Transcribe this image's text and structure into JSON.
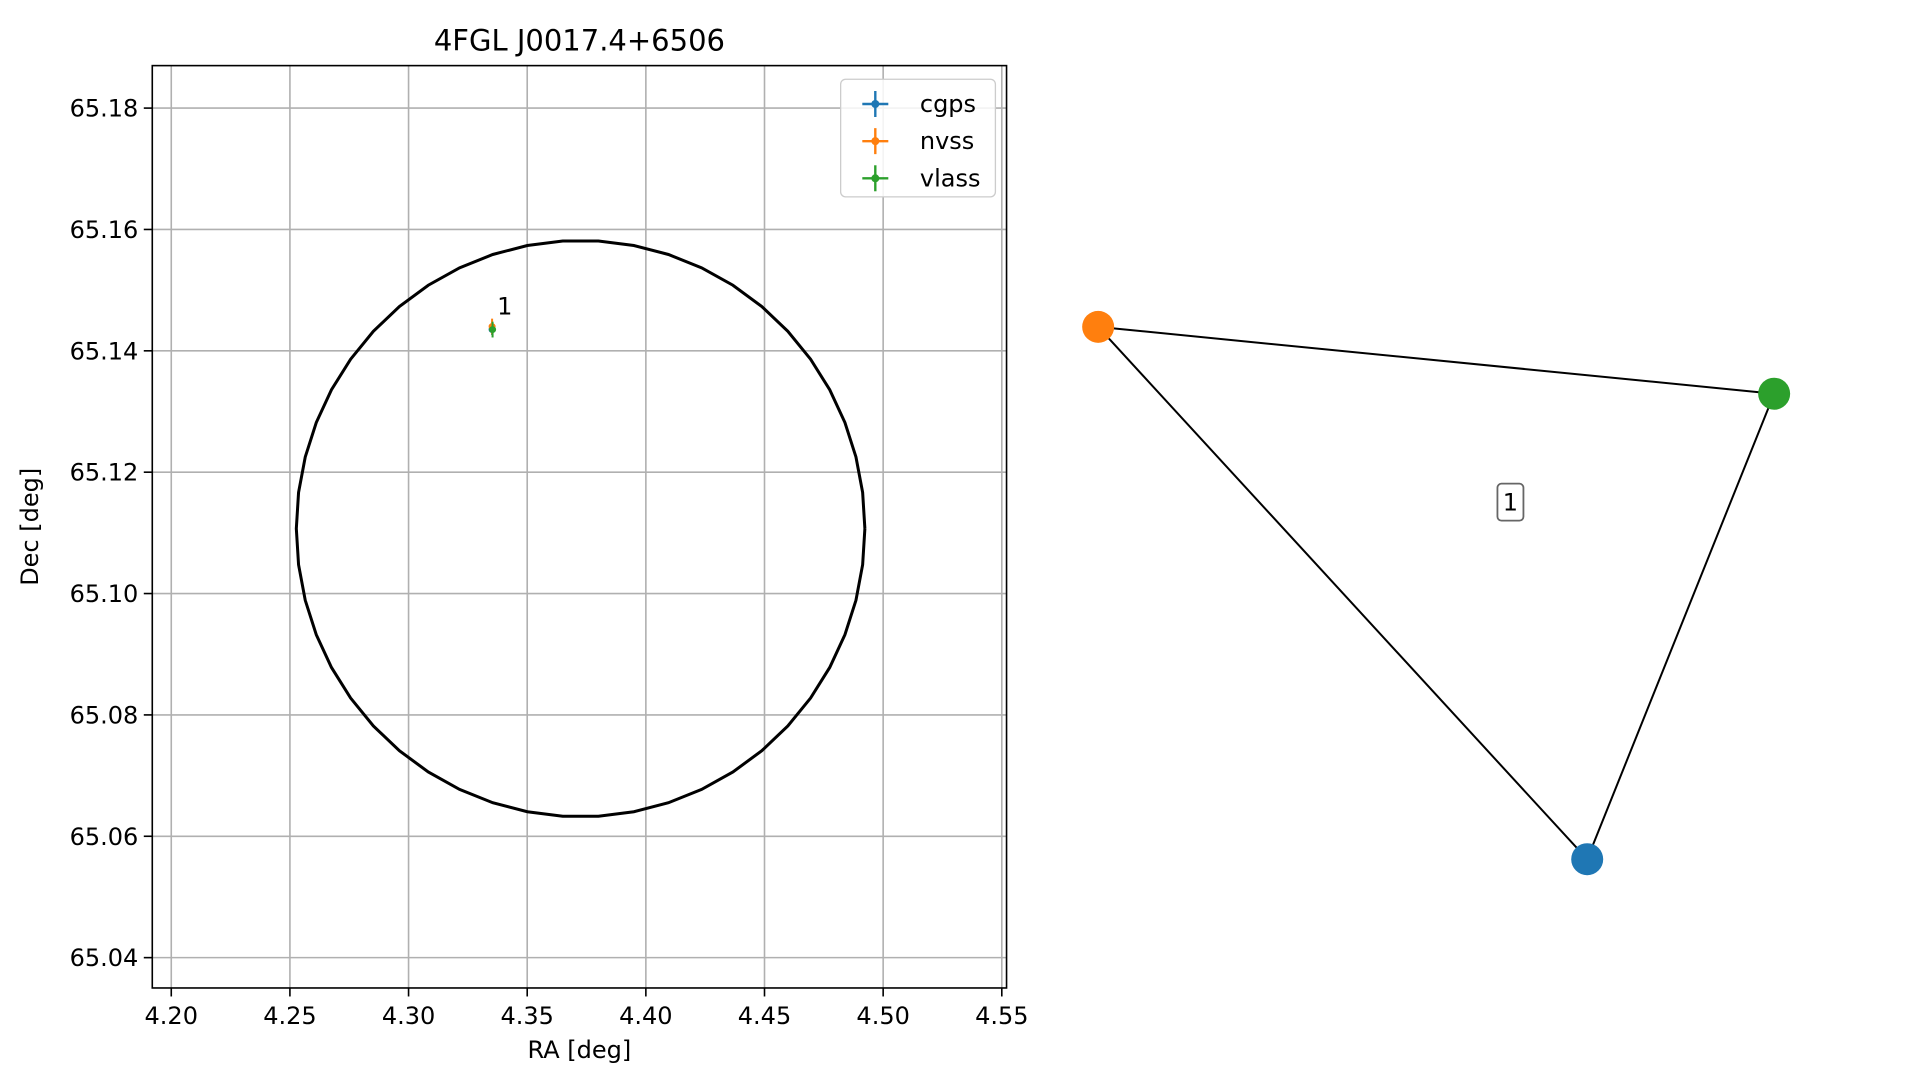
{
  "chart_data": [
    {
      "type": "scatter",
      "title": "4FGL J0017.4+6506",
      "xlabel": "RA [deg]",
      "ylabel": "Dec [deg]",
      "xlim": [
        4.192,
        4.552
      ],
      "ylim": [
        65.035,
        65.187
      ],
      "grid": true,
      "x_ticks": [
        "4.20",
        "4.25",
        "4.30",
        "4.35",
        "4.40",
        "4.45",
        "4.50",
        "4.55"
      ],
      "y_ticks": [
        "65.04",
        "65.06",
        "65.08",
        "65.10",
        "65.12",
        "65.14",
        "65.16",
        "65.18"
      ],
      "ellipse": {
        "center_ra": 4.3725,
        "center_dec": 65.1107,
        "semi_axis_ra": 0.1198,
        "semi_axis_dec": 0.0475
      },
      "series": [
        {
          "name": "cgps",
          "color": "#1f77b4",
          "points": [
            {
              "ra": 4.3352,
              "dec": 65.1435,
              "ra_err": 0.0005,
              "dec_err": 0.0009
            }
          ]
        },
        {
          "name": "nvss",
          "color": "#ff7f0e",
          "points": [
            {
              "ra": 4.3352,
              "dec": 65.144,
              "ra_err": 0.0008,
              "dec_err": 0.0013
            }
          ]
        },
        {
          "name": "vlass",
          "color": "#2ca02c",
          "points": [
            {
              "ra": 4.3354,
              "dec": 65.1435,
              "ra_err": 0.0008,
              "dec_err": 0.0013
            }
          ]
        }
      ],
      "annotations": [
        {
          "text": "1",
          "ra": 4.3352,
          "dec": 65.144
        }
      ],
      "legend": "top-right"
    },
    {
      "type": "network",
      "nodes": [
        {
          "name": "nvss",
          "color": "#ff7f0e"
        },
        {
          "name": "vlass",
          "color": "#2ca02c"
        },
        {
          "name": "cgps",
          "color": "#1f77b4"
        }
      ],
      "edges": [
        [
          "nvss",
          "vlass"
        ],
        [
          "nvss",
          "cgps"
        ],
        [
          "vlass",
          "cgps"
        ]
      ],
      "group_label": "1"
    }
  ]
}
